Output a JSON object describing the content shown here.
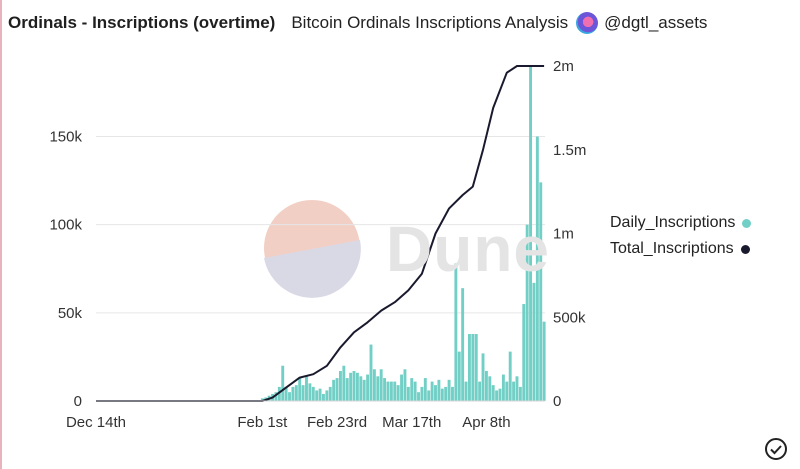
{
  "header": {
    "title": "Ordinals - Inscriptions (overtime)",
    "subtitle": "Bitcoin Ordinals Inscriptions Analysis",
    "handle": "@dgtl_assets"
  },
  "watermark": {
    "text": "Dune"
  },
  "colors": {
    "bars": "#72cfc6",
    "line": "#1a1a2e",
    "grid": "#e6e6e6",
    "watermark_top": "#f2cfc4",
    "watermark_bottom": "#d9d9e6"
  },
  "icons": {
    "avatar": "avatar-icon",
    "verified": "check-circle-icon"
  },
  "chart_data": {
    "type": "bar",
    "x_tick_labels": [
      "Dec 14th",
      "Feb 1st",
      "Feb 23rd",
      "Mar 17th",
      "Apr 8th"
    ],
    "y_left": {
      "tick_labels": [
        "0",
        "50k",
        "100k",
        "150k"
      ],
      "ylim": [
        0,
        190000
      ]
    },
    "y_right": {
      "tick_labels": [
        "0",
        "500k",
        "1m",
        "1.5m",
        "2m"
      ],
      "ylim": [
        0,
        2000000
      ]
    },
    "grid": true,
    "legend_position": "right",
    "legend": [
      "Daily_Inscriptions",
      "Total_Inscriptions"
    ],
    "series": [
      {
        "name": "Daily_Inscriptions",
        "kind": "bar",
        "axis": "left",
        "start_index": 49,
        "values": [
          1500,
          2000,
          3000,
          4000,
          5000,
          8000,
          20000,
          8000,
          5000,
          8000,
          9000,
          13000,
          9000,
          14000,
          10000,
          8000,
          6000,
          7000,
          4000,
          6000,
          8000,
          12000,
          13000,
          17000,
          20000,
          13000,
          16000,
          17000,
          16000,
          14000,
          12000,
          15000,
          32000,
          18000,
          14000,
          18000,
          13000,
          11000,
          11000,
          11000,
          9000,
          15000,
          18000,
          8000,
          13000,
          11000,
          5000,
          8000,
          13000,
          6000,
          11000,
          9000,
          12000,
          7000,
          8000,
          12000,
          8000,
          78000,
          28000,
          64000,
          11000,
          38000,
          38000,
          38000,
          11000,
          27000,
          17000,
          14000,
          9000,
          6000,
          7000,
          15000,
          11000,
          28000,
          11000,
          14000,
          8000,
          55000,
          100000,
          190000,
          67000,
          150000,
          124000,
          45000
        ]
      },
      {
        "name": "Total_Inscriptions",
        "kind": "line",
        "axis": "right",
        "x": [
          0,
          49,
          52,
          56,
          60,
          64,
          68,
          72,
          76,
          80,
          84,
          88,
          92,
          96,
          100,
          104,
          108,
          111,
          114,
          117,
          121,
          124,
          127,
          128,
          129,
          130,
          131,
          132
        ],
        "values": [
          0,
          0,
          20000,
          80000,
          140000,
          160000,
          210000,
          320000,
          410000,
          470000,
          540000,
          590000,
          660000,
          760000,
          1000000,
          1150000,
          1230000,
          1280000,
          1500000,
          1750000,
          1960000,
          2000000,
          2000000,
          2000000,
          2000000,
          2000000,
          2000000,
          2000000
        ]
      }
    ]
  }
}
